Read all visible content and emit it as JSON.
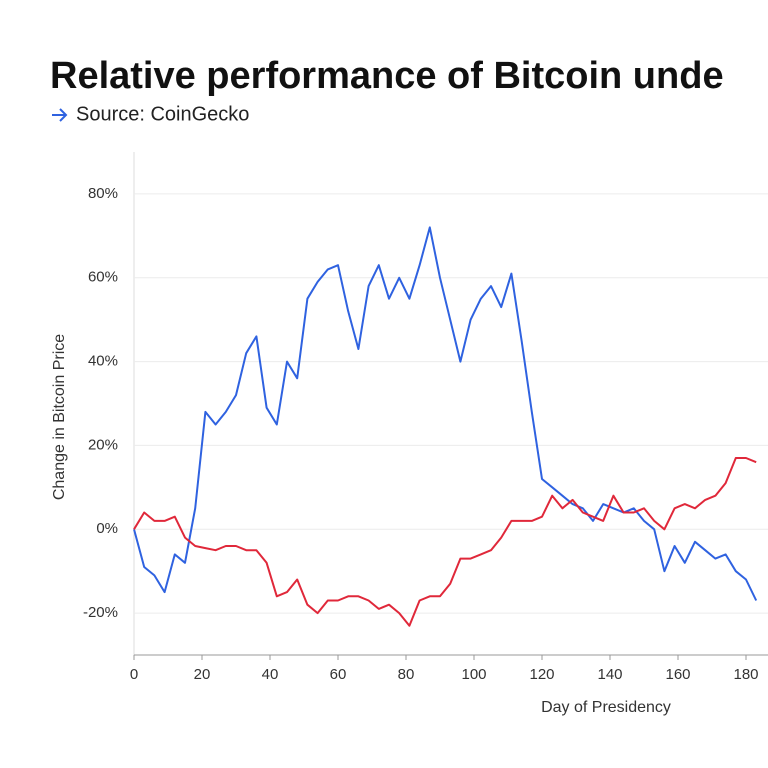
{
  "chart_data": {
    "type": "line",
    "title": "Relative performance of Bitcoin unde",
    "subtitle": "Source: CoinGecko",
    "x_label": "Day of Presidency",
    "y_label": "Change in Bitcoin Price",
    "x": [
      0,
      3,
      6,
      9,
      12,
      15,
      18,
      21,
      24,
      27,
      30,
      33,
      36,
      39,
      42,
      45,
      48,
      51,
      54,
      57,
      60,
      63,
      66,
      69,
      72,
      75,
      78,
      81,
      84,
      87,
      90,
      93,
      96,
      99,
      102,
      105,
      108,
      111,
      114,
      117,
      120,
      123,
      126,
      129,
      132,
      135,
      138,
      141,
      144,
      147,
      150,
      153,
      156,
      159,
      162,
      165,
      168,
      171,
      174,
      177,
      180,
      183
    ],
    "series": [
      {
        "color": "#2f62e0",
        "values": [
          0,
          -9,
          -11,
          -15,
          -6,
          -8,
          5,
          28,
          25,
          28,
          32,
          42,
          46,
          29,
          25,
          40,
          36,
          55,
          59,
          62,
          63,
          52,
          43,
          58,
          63,
          55,
          60,
          55,
          63,
          72,
          60,
          50,
          40,
          50,
          55,
          58,
          53,
          61,
          45,
          28,
          12,
          10,
          8,
          6,
          5,
          2,
          6,
          5,
          4,
          5,
          2,
          0,
          -10,
          -4,
          -8,
          -3,
          -5,
          -7,
          -6,
          -10,
          -12,
          -17
        ]
      },
      {
        "color": "#e0283a",
        "values": [
          0,
          4,
          2,
          2,
          3,
          -2,
          -4,
          -4.5,
          -5,
          -4,
          -4,
          -5,
          -5,
          -8,
          -16,
          -15,
          -12,
          -18,
          -20,
          -17,
          -17,
          -16,
          -16,
          -17,
          -19,
          -18,
          -20,
          -23,
          -17,
          -16,
          -16,
          -13,
          -7,
          -7,
          -6,
          -5,
          -2,
          2,
          2,
          2,
          3,
          8,
          5,
          7,
          4,
          3,
          2,
          8,
          4,
          4,
          5,
          2,
          0,
          5,
          6,
          5,
          7,
          8,
          11,
          17,
          17,
          16
        ]
      }
    ],
    "xlim": [
      0,
      185
    ],
    "xticks": [
      0,
      20,
      40,
      60,
      80,
      100,
      120,
      140,
      160,
      180
    ],
    "ylim": [
      -30,
      90
    ],
    "yticks": [
      {
        "value": -20,
        "label": "-20%"
      },
      {
        "value": 0,
        "label": "0%"
      },
      {
        "value": 20,
        "label": "20%"
      },
      {
        "value": 40,
        "label": "40%"
      },
      {
        "value": 60,
        "label": "60%"
      },
      {
        "value": 80,
        "label": "80%"
      }
    ],
    "grid": true
  }
}
